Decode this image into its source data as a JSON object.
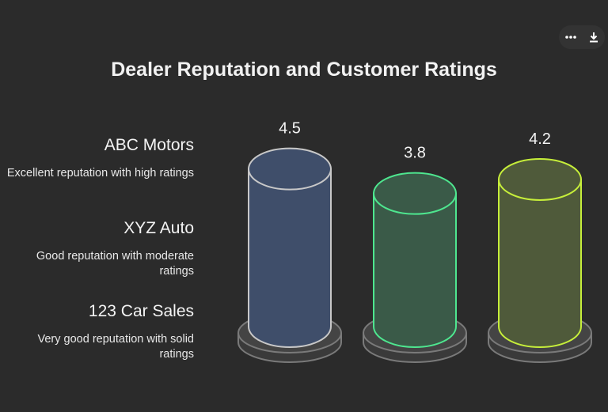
{
  "toolbar": {
    "more_icon": "more-horizontal-icon",
    "download_icon": "download-icon"
  },
  "chart_data": {
    "type": "bar",
    "title": "Dealer Reputation and Customer Ratings",
    "categories": [
      "ABC Motors",
      "XYZ Auto",
      "123 Car Sales"
    ],
    "descriptions": [
      "Excellent reputation with high ratings",
      "Good reputation with moderate ratings",
      "Very good reputation with solid ratings"
    ],
    "values": [
      4.5,
      3.8,
      4.2
    ],
    "value_labels": [
      "4.5",
      "3.8",
      "4.2"
    ],
    "colors": {
      "fill": [
        "#3f4e6a",
        "#3a5a48",
        "#4f5a3a"
      ],
      "stroke": [
        "#c8c8c8",
        "#4ee68f",
        "#c6ee3a"
      ],
      "base": "#7a7a7a"
    }
  }
}
